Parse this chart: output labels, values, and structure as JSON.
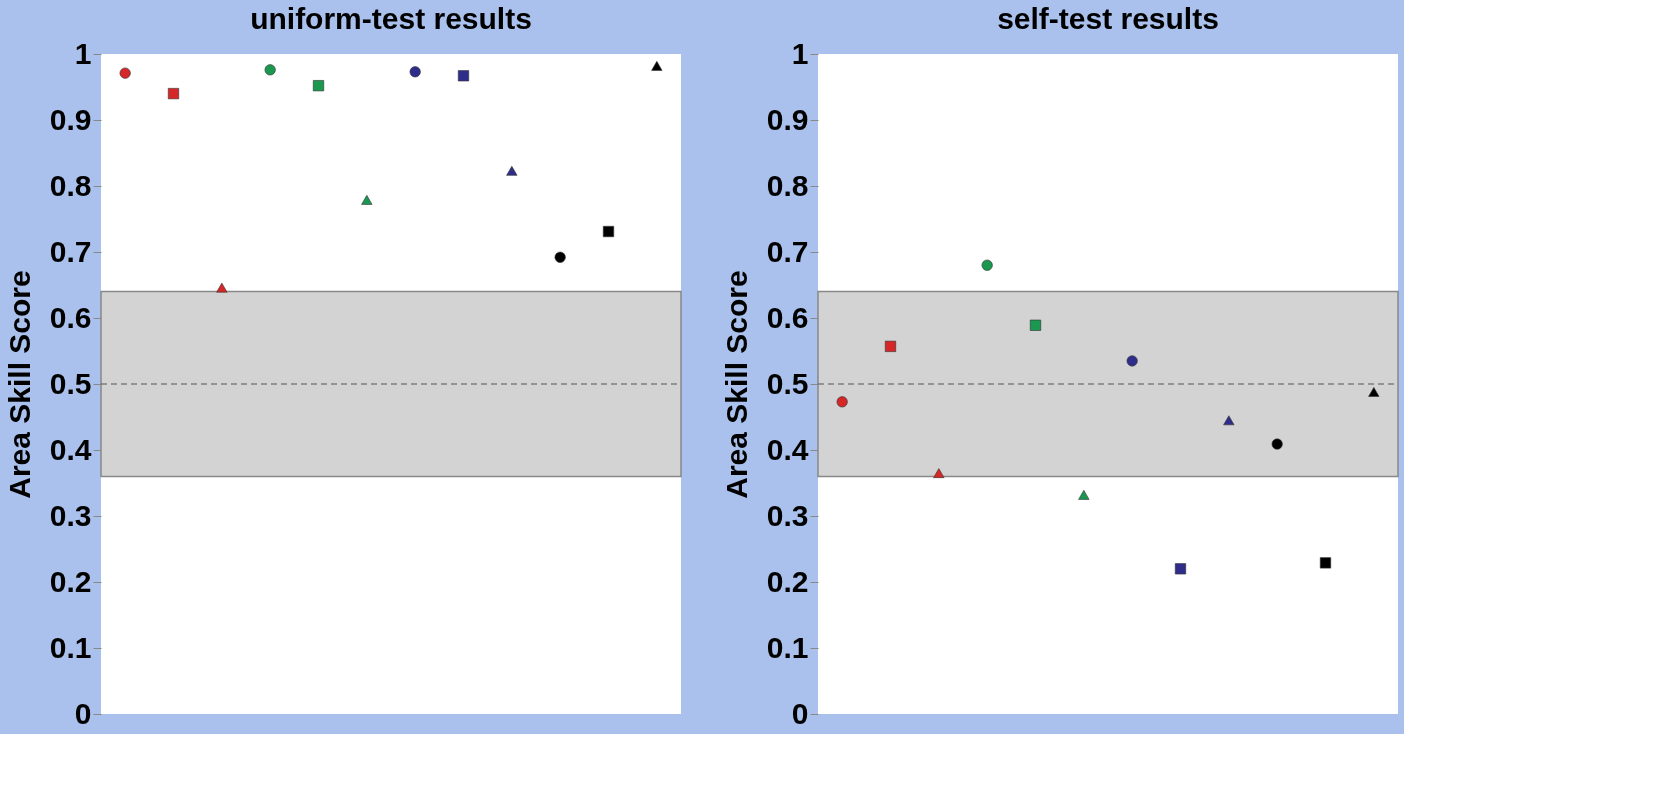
{
  "chart_data": [
    {
      "type": "scatter",
      "title": "uniform-test results",
      "ylabel": "Area Skill Score",
      "categories": [
        null,
        null,
        null,
        null,
        null,
        null,
        null,
        null,
        null,
        null,
        null,
        null
      ],
      "ylim": [
        0,
        1
      ],
      "yticks": [
        0,
        0.1,
        0.2,
        0.3,
        0.4,
        0.5,
        0.6,
        0.7,
        0.8,
        0.9,
        1
      ],
      "grid": false,
      "legend": false,
      "tick_labels": "y",
      "series": [
        {
          "marker": "circle",
          "colors": [
            "#d62728",
            null,
            null,
            "#1a9850",
            null,
            null,
            "#2e2e8a",
            null,
            null,
            "#000000",
            null,
            null
          ],
          "values": [
            0.971,
            null,
            null,
            0.976,
            null,
            null,
            0.973,
            null,
            null,
            0.692,
            null,
            null
          ]
        },
        {
          "marker": "square",
          "colors": [
            null,
            "#d62728",
            null,
            null,
            "#1a9850",
            null,
            null,
            "#2e2e8a",
            null,
            null,
            "#000000",
            null
          ],
          "values": [
            null,
            0.94,
            null,
            null,
            0.952,
            null,
            null,
            0.967,
            null,
            null,
            0.731,
            null
          ]
        },
        {
          "marker": "triangle",
          "colors": [
            null,
            null,
            "#d62728",
            null,
            null,
            "#1a9850",
            null,
            null,
            "#2e2e8a",
            null,
            null,
            "#000000"
          ],
          "values": [
            null,
            null,
            0.646,
            null,
            null,
            0.779,
            null,
            null,
            0.823,
            null,
            null,
            0.982
          ]
        }
      ],
      "bands": [
        {
          "axis": "y",
          "from": 0.36,
          "to": 0.64,
          "color": "#d3d3d3"
        }
      ],
      "ref_lines": [
        {
          "axis": "y",
          "value": 0.5,
          "line_style": "dashed",
          "color": "#555555"
        }
      ]
    },
    {
      "type": "scatter",
      "title": "self-test results",
      "ylabel": "Area Skill Score",
      "categories": [
        null,
        null,
        null,
        null,
        null,
        null,
        null,
        null,
        null,
        null,
        null,
        null
      ],
      "ylim": [
        0,
        1
      ],
      "yticks": [
        0,
        0.1,
        0.2,
        0.3,
        0.4,
        0.5,
        0.6,
        0.7,
        0.8,
        0.9,
        1
      ],
      "grid": false,
      "legend": false,
      "tick_labels": "y",
      "series": [
        {
          "marker": "circle",
          "colors": [
            "#d62728",
            null,
            null,
            "#1a9850",
            null,
            null,
            "#2e2e8a",
            null,
            null,
            "#000000",
            null,
            null
          ],
          "values": [
            0.473,
            null,
            null,
            0.68,
            null,
            null,
            0.535,
            null,
            null,
            0.409,
            null,
            null
          ]
        },
        {
          "marker": "square",
          "colors": [
            null,
            "#d62728",
            null,
            null,
            "#1a9850",
            null,
            null,
            "#2e2e8a",
            null,
            null,
            "#000000",
            null
          ],
          "values": [
            null,
            0.557,
            null,
            null,
            0.589,
            null,
            null,
            0.22,
            null,
            null,
            0.229,
            null
          ]
        },
        {
          "marker": "triangle",
          "colors": [
            null,
            null,
            "#d62728",
            null,
            null,
            "#1a9850",
            null,
            null,
            "#2e2e8a",
            null,
            null,
            "#000000"
          ],
          "values": [
            null,
            null,
            0.365,
            null,
            null,
            0.332,
            null,
            null,
            0.445,
            null,
            null,
            0.488
          ]
        }
      ],
      "bands": [
        {
          "axis": "y",
          "from": 0.36,
          "to": 0.64,
          "color": "#d3d3d3"
        }
      ],
      "ref_lines": [
        {
          "axis": "y",
          "value": 0.5,
          "line_style": "dashed",
          "color": "#555555"
        }
      ]
    }
  ]
}
